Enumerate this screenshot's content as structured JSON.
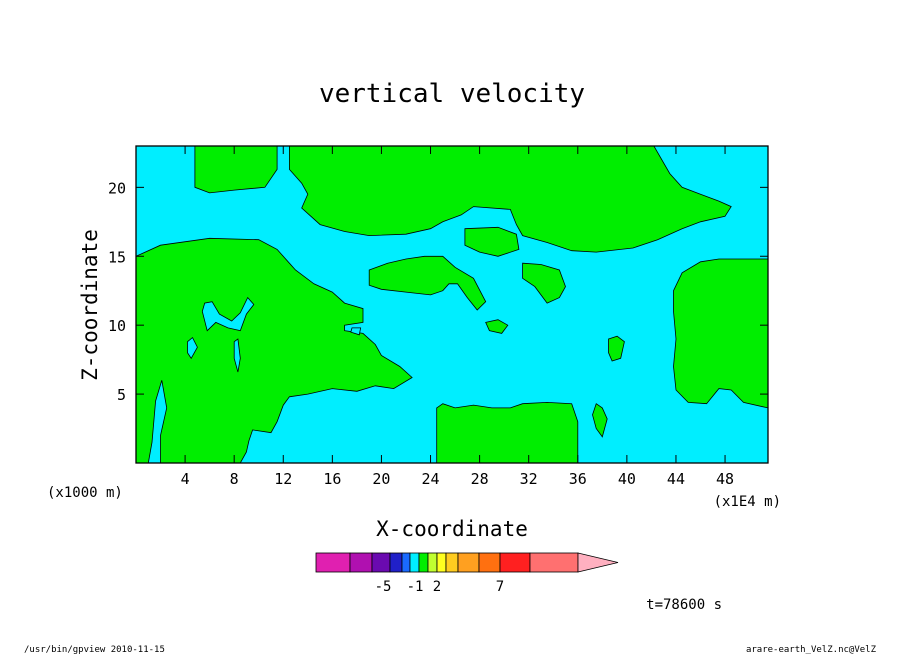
{
  "chart_data": {
    "type": "heatmap",
    "title": "vertical velocity",
    "xlabel": "X-coordinate",
    "ylabel": "Z-coordinate",
    "x_unit": "(x1E4 m)",
    "y_unit": "(x1000 m)",
    "xlim": [
      0,
      51.5
    ],
    "ylim": [
      0,
      23
    ],
    "x_ticks": [
      4,
      8,
      12,
      16,
      20,
      24,
      28,
      32,
      36,
      40,
      44,
      48
    ],
    "y_ticks": [
      5,
      10,
      15,
      20
    ],
    "time_label": "t=78600 s",
    "colors": {
      "background": "#00eeff",
      "contour_fill": "#00ee00",
      "line": "#000000"
    },
    "regions": [
      {
        "level": "positive",
        "polygon": [
          [
            0,
            0
          ],
          [
            0,
            15
          ],
          [
            2,
            15.8
          ],
          [
            6,
            16.3
          ],
          [
            10,
            16.2
          ],
          [
            11.5,
            15.5
          ],
          [
            12.5,
            14.5
          ],
          [
            13,
            14
          ],
          [
            14.5,
            13
          ],
          [
            16,
            12.4
          ],
          [
            17,
            11.6
          ],
          [
            18.5,
            11.2
          ],
          [
            18.5,
            10.2
          ],
          [
            17,
            10
          ],
          [
            17,
            9.6
          ],
          [
            18.5,
            9.4
          ],
          [
            19.5,
            8.6
          ],
          [
            20,
            7.8
          ],
          [
            21.5,
            7
          ],
          [
            22.5,
            6.2
          ],
          [
            21,
            5.4
          ],
          [
            19.5,
            5.6
          ],
          [
            18,
            5.2
          ],
          [
            16,
            5.4
          ],
          [
            14,
            5
          ],
          [
            12.5,
            4.8
          ],
          [
            12,
            4.2
          ],
          [
            11.5,
            3
          ],
          [
            11,
            2.2
          ],
          [
            9.5,
            2.4
          ],
          [
            9.2,
            1.6
          ],
          [
            9,
            0.8
          ],
          [
            8.5,
            0
          ]
        ]
      },
      {
        "level": "positive",
        "polygon": [
          [
            4.8,
            23
          ],
          [
            4.8,
            20
          ],
          [
            6,
            19.6
          ],
          [
            8,
            19.8
          ],
          [
            10.5,
            20
          ],
          [
            11.5,
            21.3
          ],
          [
            11.5,
            23
          ]
        ]
      },
      {
        "level": "positive",
        "polygon": [
          [
            12.5,
            23
          ],
          [
            12.5,
            21.3
          ],
          [
            13.5,
            20.3
          ],
          [
            14,
            19.5
          ],
          [
            13.5,
            18.5
          ],
          [
            15,
            17.3
          ],
          [
            17,
            16.8
          ],
          [
            19,
            16.5
          ],
          [
            22,
            16.6
          ],
          [
            24,
            17
          ],
          [
            25,
            17.5
          ],
          [
            26.5,
            18
          ],
          [
            27.5,
            18.6
          ],
          [
            30.5,
            18.4
          ],
          [
            31,
            17.3
          ],
          [
            31.5,
            16.5
          ],
          [
            33.5,
            16
          ],
          [
            35.5,
            15.4
          ],
          [
            37.5,
            15.3
          ],
          [
            40.5,
            15.6
          ],
          [
            42.5,
            16.2
          ],
          [
            44.5,
            17
          ],
          [
            46,
            17.5
          ],
          [
            48,
            17.9
          ],
          [
            48.5,
            18.6
          ],
          [
            47.5,
            19
          ],
          [
            46,
            19.5
          ],
          [
            44.5,
            20
          ],
          [
            43.5,
            21
          ],
          [
            42.2,
            23
          ]
        ]
      },
      {
        "level": "positive",
        "polygon": [
          [
            26.8,
            17
          ],
          [
            29.5,
            17.1
          ],
          [
            31,
            16.6
          ],
          [
            31.2,
            15.5
          ],
          [
            29.5,
            15
          ],
          [
            28,
            15.3
          ],
          [
            26.8,
            15.8
          ]
        ]
      },
      {
        "level": "positive",
        "polygon": [
          [
            19,
            14
          ],
          [
            20.5,
            14.5
          ],
          [
            22,
            14.8
          ],
          [
            23.5,
            15
          ],
          [
            25,
            15
          ],
          [
            26,
            14.2
          ],
          [
            27.5,
            13.4
          ],
          [
            28.5,
            11.7
          ],
          [
            27.8,
            11.1
          ],
          [
            27,
            12
          ],
          [
            26.2,
            13
          ],
          [
            25.5,
            13
          ],
          [
            25,
            12.5
          ],
          [
            24,
            12.2
          ],
          [
            22,
            12.4
          ],
          [
            20,
            12.6
          ],
          [
            19,
            12.9
          ]
        ]
      },
      {
        "level": "positive",
        "polygon": [
          [
            31.5,
            14.5
          ],
          [
            33,
            14.4
          ],
          [
            34.5,
            14
          ],
          [
            35,
            12.8
          ],
          [
            34.5,
            12
          ],
          [
            33.5,
            11.6
          ],
          [
            32.5,
            12.8
          ],
          [
            31.5,
            13.4
          ]
        ]
      },
      {
        "level": "positive",
        "polygon": [
          [
            24.5,
            0
          ],
          [
            24.5,
            4
          ],
          [
            25,
            4.3
          ],
          [
            26,
            4
          ],
          [
            27.5,
            4.2
          ],
          [
            29,
            4
          ],
          [
            30.5,
            4
          ],
          [
            31.5,
            4.3
          ],
          [
            33.5,
            4.4
          ],
          [
            35.5,
            4.3
          ],
          [
            36,
            3
          ],
          [
            36,
            0
          ]
        ]
      },
      {
        "level": "positive",
        "polygon": [
          [
            43.8,
            12.5
          ],
          [
            44.5,
            13.8
          ],
          [
            46,
            14.6
          ],
          [
            47.5,
            14.8
          ],
          [
            49.5,
            14.8
          ],
          [
            51.5,
            14.8
          ],
          [
            51.5,
            4
          ],
          [
            49.5,
            4.4
          ],
          [
            48.5,
            5.3
          ],
          [
            47.5,
            5.4
          ],
          [
            46.5,
            4.3
          ],
          [
            45,
            4.4
          ],
          [
            44,
            5.3
          ],
          [
            43.8,
            7
          ],
          [
            44,
            9
          ],
          [
            43.8,
            11
          ]
        ]
      },
      {
        "level": "positive",
        "polygon": [
          [
            38.5,
            9
          ],
          [
            39.2,
            9.2
          ],
          [
            39.8,
            8.8
          ],
          [
            39.5,
            7.6
          ],
          [
            38.8,
            7.4
          ],
          [
            38.5,
            8
          ]
        ]
      },
      {
        "level": "positive",
        "polygon": [
          [
            28.5,
            10.2
          ],
          [
            29.5,
            10.4
          ],
          [
            30.3,
            10
          ],
          [
            29.8,
            9.4
          ],
          [
            28.8,
            9.6
          ]
        ]
      },
      {
        "level": "positive",
        "polygon": [
          [
            37.5,
            4.3
          ],
          [
            38,
            4
          ],
          [
            38.4,
            3.2
          ],
          [
            38,
            1.9
          ],
          [
            37.5,
            2.5
          ],
          [
            37.2,
            3.5
          ]
        ]
      },
      {
        "level": "negative",
        "polygon": [
          [
            1,
            0
          ],
          [
            1.3,
            1.5
          ],
          [
            1.6,
            4.5
          ],
          [
            2.1,
            6
          ],
          [
            2.5,
            4
          ],
          [
            2,
            2
          ],
          [
            2,
            0
          ]
        ]
      },
      {
        "level": "negative",
        "polygon": [
          [
            5.8,
            9.6
          ],
          [
            6.5,
            10.2
          ],
          [
            7.5,
            9.8
          ],
          [
            8.5,
            9.6
          ],
          [
            9,
            10.8
          ],
          [
            9.6,
            11.5
          ],
          [
            9.1,
            12
          ],
          [
            8.5,
            10.9
          ],
          [
            7.8,
            10.3
          ],
          [
            6.8,
            10.8
          ],
          [
            6.2,
            11.7
          ],
          [
            5.6,
            11.6
          ],
          [
            5.4,
            11
          ]
        ]
      },
      {
        "level": "negative",
        "polygon": [
          [
            4.2,
            8.8
          ],
          [
            4.6,
            9.1
          ],
          [
            5,
            8.4
          ],
          [
            4.5,
            7.6
          ],
          [
            4.2,
            8
          ]
        ]
      },
      {
        "level": "negative",
        "polygon": [
          [
            8,
            8.8
          ],
          [
            8.3,
            9
          ],
          [
            8.5,
            7.6
          ],
          [
            8.3,
            6.6
          ],
          [
            8,
            7.6
          ]
        ]
      },
      {
        "level": "negative",
        "polygon": [
          [
            17.6,
            9.8
          ],
          [
            18.3,
            9.8
          ],
          [
            18.2,
            9.3
          ],
          [
            17.5,
            9.5
          ]
        ]
      }
    ],
    "colorbar": {
      "tick_labels": [
        "-5",
        "-1",
        "2",
        "7"
      ],
      "colors": [
        "#e020b0",
        "#b010b0",
        "#6a0ab0",
        "#2020c8",
        "#1a6aff",
        "#00eeff",
        "#00ee00",
        "#c0ff30",
        "#ffff20",
        "#ffcc20",
        "#ffa020",
        "#ff7010",
        "#ff2020",
        "#ff7070",
        "#ffb0c0"
      ]
    }
  },
  "footer": {
    "left": "/usr/bin/gpview   2010-11-15",
    "right": "arare-earth_VelZ.nc@VelZ"
  }
}
